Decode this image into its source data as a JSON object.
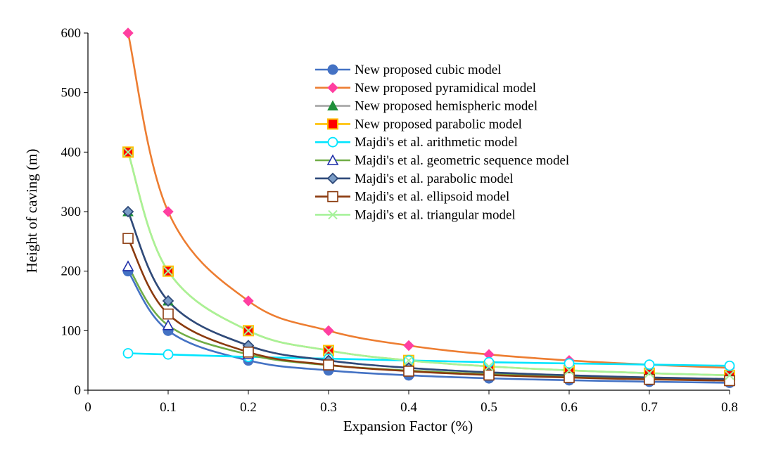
{
  "chart_data": {
    "type": "line",
    "title": "",
    "xlabel": "Expansion Factor (%)",
    "ylabel": "Height of caving (m)",
    "xlim": [
      0,
      0.8
    ],
    "ylim": [
      0,
      600
    ],
    "xticks": [
      0,
      0.1,
      0.2,
      0.3,
      0.4,
      0.5,
      0.6,
      0.7,
      0.8
    ],
    "yticks": [
      0,
      100,
      200,
      300,
      400,
      500,
      600
    ],
    "xtick_labels": [
      "0",
      "0.1",
      "0.2",
      "0.3",
      "0.4",
      "0.5",
      "0.6",
      "0.7",
      "0.8"
    ],
    "ytick_labels": [
      "0",
      "100",
      "200",
      "300",
      "400",
      "500",
      "600"
    ],
    "grid": false,
    "legend_position": "top-right",
    "x": [
      0.05,
      0.1,
      0.2,
      0.3,
      0.4,
      0.5,
      0.6,
      0.7,
      0.8
    ],
    "series": [
      {
        "name": "New proposed cubic model",
        "color": "#4472c4",
        "marker": "circle-filled",
        "marker_fill": "#4472c4",
        "marker_stroke": "#4472c4",
        "values": [
          200,
          100,
          50,
          33.3,
          25,
          20,
          16.7,
          14.3,
          12.5
        ]
      },
      {
        "name": "New proposed pyramidical model",
        "color": "#ed7d31",
        "marker": "diamond-filled",
        "marker_fill": "#ff3fa0",
        "marker_stroke": "#ff3fa0",
        "values": [
          600,
          300,
          150,
          100,
          75,
          60,
          50,
          42.9,
          37.5
        ]
      },
      {
        "name": "New proposed hemispheric model",
        "color": "#a5a5a5",
        "marker": "triangle-filled",
        "marker_fill": "#1f8f3a",
        "marker_stroke": "#1f8f3a",
        "values": [
          300,
          150,
          75,
          50,
          37.5,
          30,
          25,
          21.4,
          18.75
        ]
      },
      {
        "name": "New proposed parabolic model",
        "color": "#ffc000",
        "marker": "square-filled",
        "marker_fill": "#ff0000",
        "marker_stroke": "#ffc000",
        "values": [
          400,
          200,
          100,
          66.7,
          50,
          40,
          33.3,
          28.6,
          25
        ]
      },
      {
        "name": "Majdi's et al. arithmetic model",
        "color": "#00e5ff",
        "marker": "circle-open",
        "marker_fill": "#ffffff",
        "marker_stroke": "#00e5ff",
        "values": [
          62,
          60,
          56,
          53,
          50,
          47,
          45,
          43,
          41
        ]
      },
      {
        "name": "Majdi's et al. geometric sequence model",
        "color": "#70ad47",
        "marker": "triangle-open",
        "marker_fill": "#ffffff",
        "marker_stroke": "#1f2fa8",
        "values": [
          208,
          109,
          60,
          42,
          33,
          27,
          23,
          20,
          18
        ]
      },
      {
        "name": "Majdi's et al. parabolic model",
        "color": "#2f4a7a",
        "marker": "diamond-open",
        "marker_fill": "#7a9cc6",
        "marker_stroke": "#2f4a7a",
        "values": [
          300,
          150,
          75,
          50,
          37.5,
          30,
          25,
          21.4,
          18.75
        ]
      },
      {
        "name": "Majdi's et al. ellipsoid model",
        "color": "#8b3a0e",
        "marker": "square-open",
        "marker_fill": "#ffffff",
        "marker_stroke": "#8b3a0e",
        "values": [
          255,
          128,
          64,
          42.5,
          32,
          25.5,
          21.3,
          18.2,
          16
        ]
      },
      {
        "name": "Majdi's et al. triangular model",
        "color": "#a6f29a",
        "marker": "x",
        "marker_fill": "none",
        "marker_stroke": "#a6f29a",
        "values": [
          400,
          200,
          100,
          66.7,
          50,
          40,
          33.3,
          28.6,
          25
        ]
      }
    ]
  }
}
